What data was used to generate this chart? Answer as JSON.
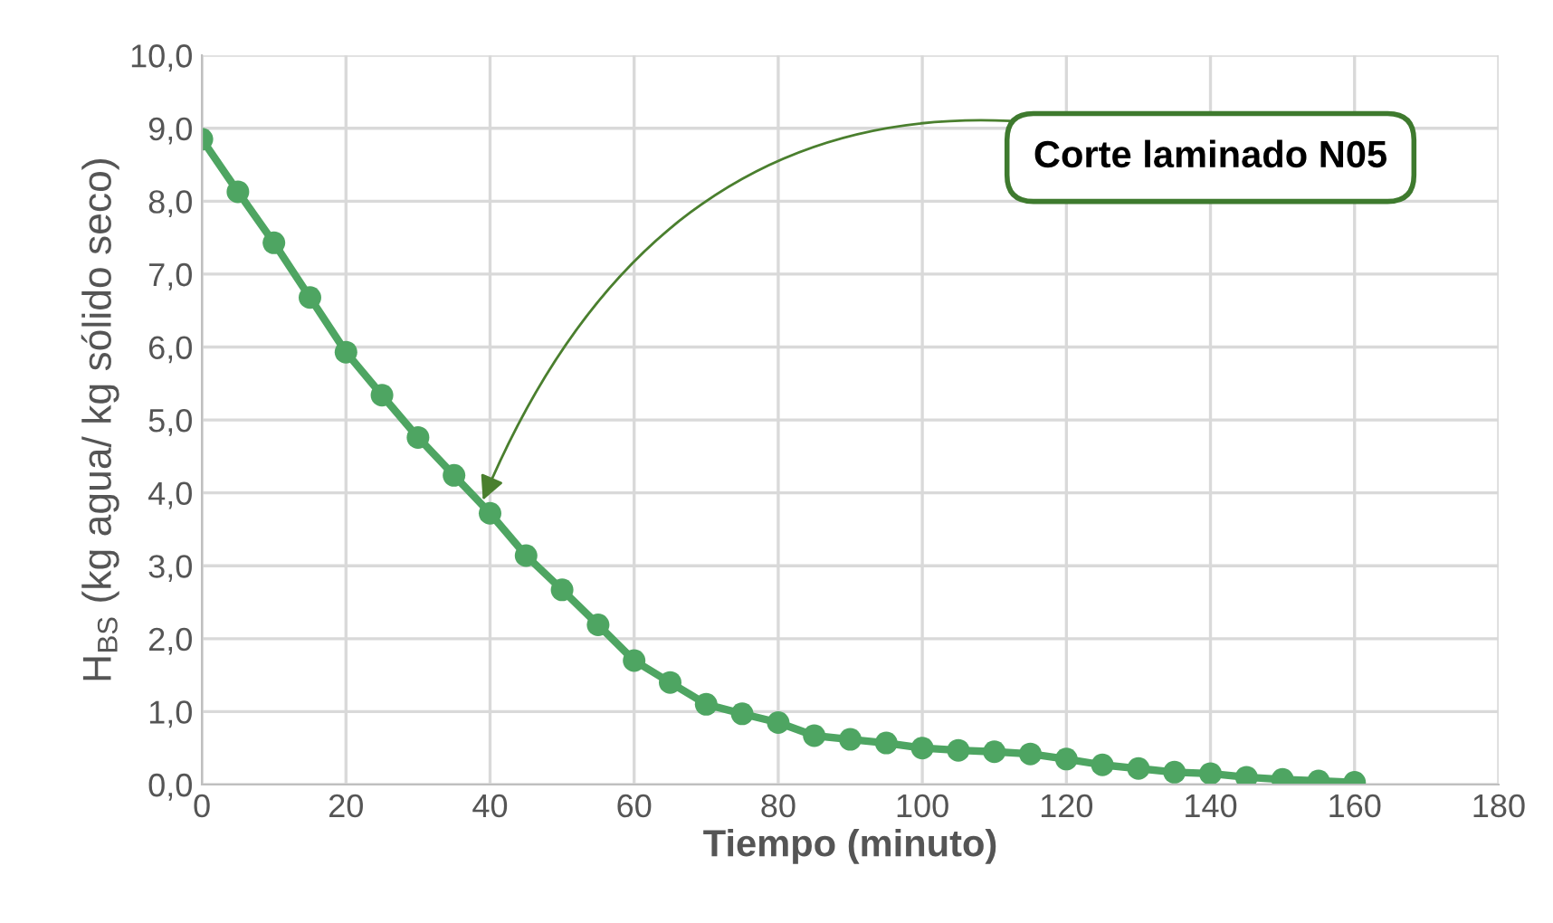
{
  "chart_data": {
    "type": "line",
    "xlabel": "Tiempo (minuto)",
    "ylabel": "H$_{BS}$ (kg agua/ kg sólido seco)",
    "x": [
      0,
      5,
      10,
      15,
      20,
      25,
      30,
      35,
      40,
      45,
      50,
      55,
      60,
      65,
      70,
      75,
      80,
      85,
      90,
      95,
      100,
      105,
      110,
      115,
      120,
      125,
      130,
      135,
      140,
      145,
      150,
      155,
      160
    ],
    "series": [
      {
        "color": "#4ea562",
        "values": [
          8.85,
          8.13,
          7.43,
          6.68,
          5.93,
          5.34,
          4.76,
          4.24,
          3.72,
          3.14,
          2.67,
          2.19,
          1.7,
          1.4,
          1.1,
          0.97,
          0.85,
          0.67,
          0.62,
          0.57,
          0.5,
          0.47,
          0.45,
          0.42,
          0.35,
          0.27,
          0.22,
          0.17,
          0.15,
          0.1,
          0.07,
          0.05,
          0.03
        ]
      }
    ],
    "xlim": [
      0,
      180
    ],
    "xticks": [
      0,
      20,
      40,
      60,
      80,
      100,
      120,
      140,
      160,
      180
    ],
    "ylim": [
      0,
      10
    ],
    "yticks": [
      {
        "value": 0,
        "label": "0,0"
      },
      {
        "value": 1,
        "label": "1,0"
      },
      {
        "value": 2,
        "label": "2,0"
      },
      {
        "value": 3,
        "label": "3,0"
      },
      {
        "value": 4,
        "label": "4,0"
      },
      {
        "value": 5,
        "label": "5,0"
      },
      {
        "value": 6,
        "label": "6,0"
      },
      {
        "value": 7,
        "label": "7,0"
      },
      {
        "value": 8,
        "label": "8,0"
      },
      {
        "value": 9,
        "label": "9,0"
      },
      {
        "value": 10,
        "label": "10,0"
      }
    ],
    "grid": true,
    "marker": "circle",
    "line_style": "solid",
    "annotations": [
      {
        "text": "Corte laminado N05",
        "x": 39,
        "y": 3.9
      }
    ]
  }
}
